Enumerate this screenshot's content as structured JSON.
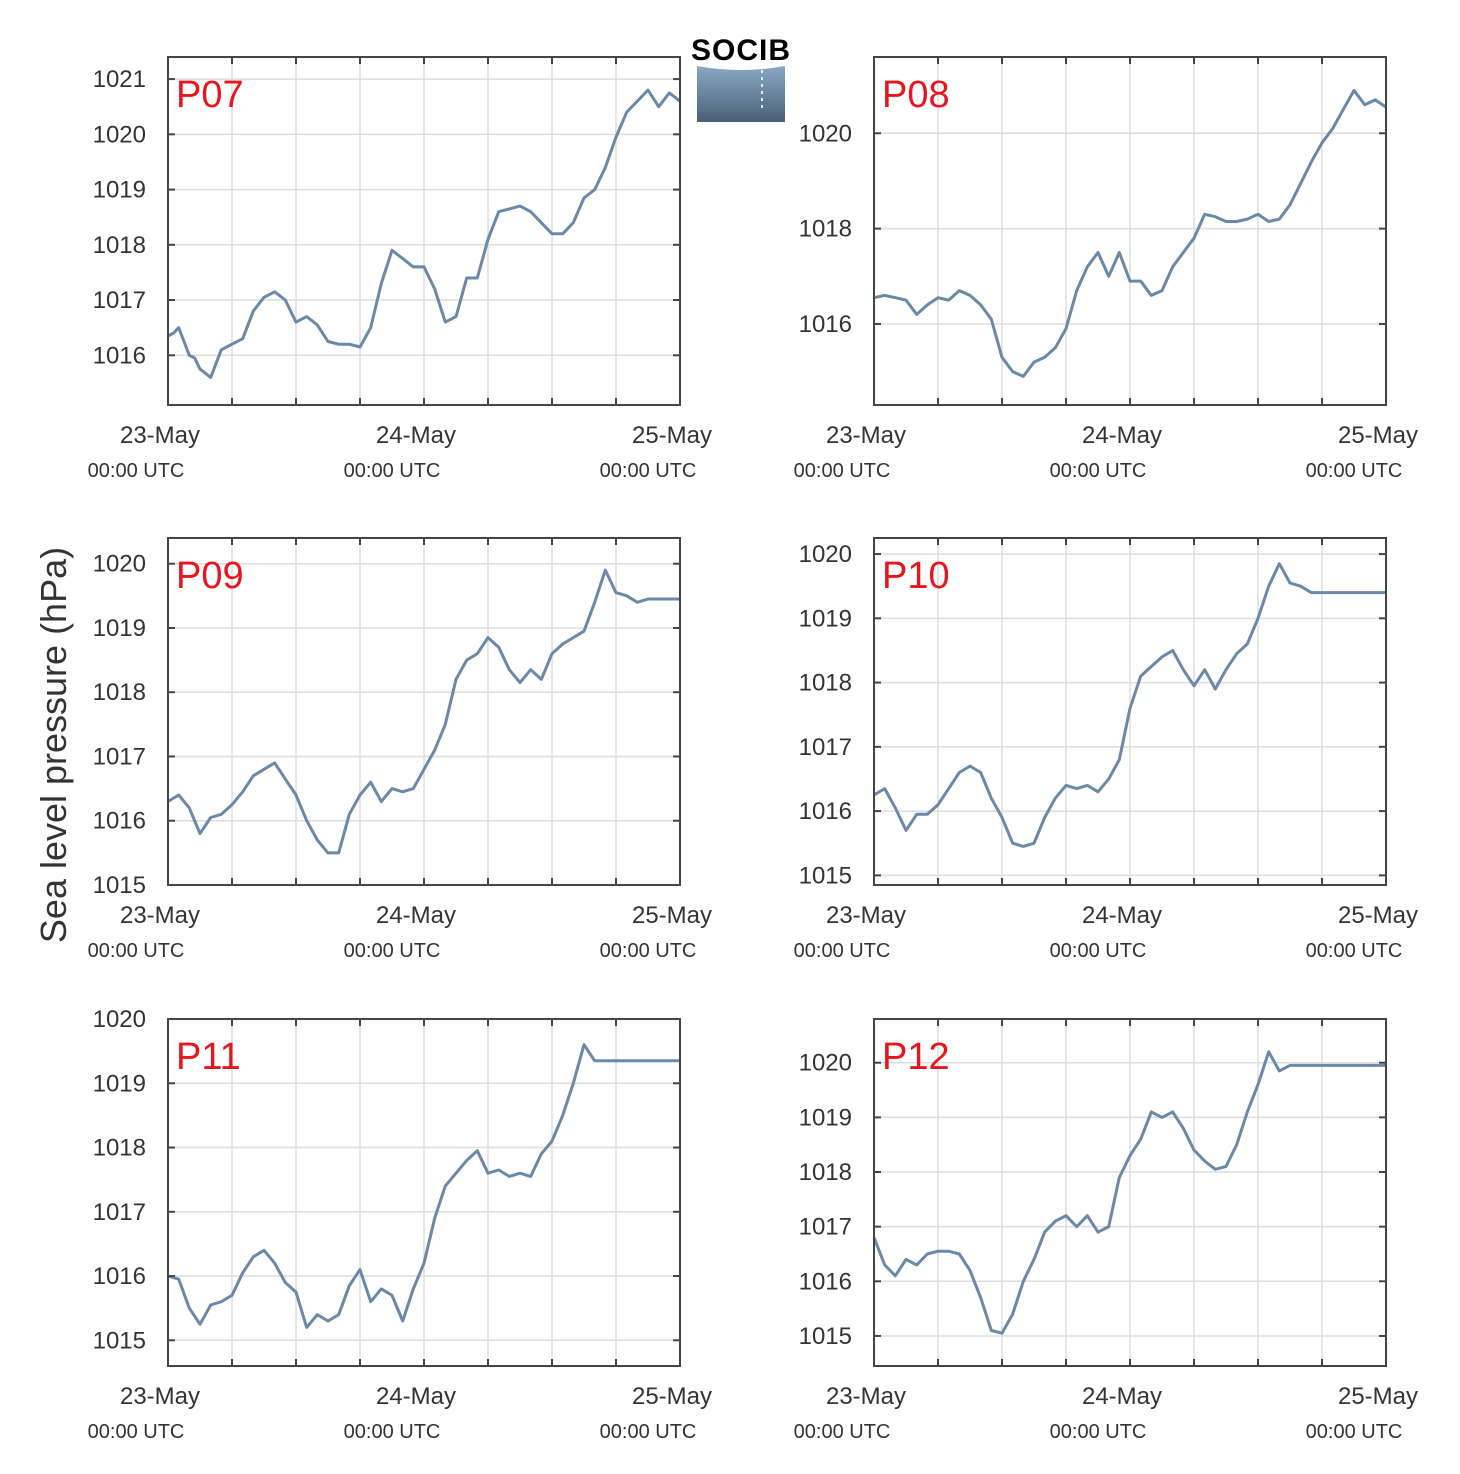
{
  "colors": {
    "line": "#6a88a8",
    "grid": "#dddddd",
    "axis": "#444444",
    "panel_label": "#e8141e",
    "logo_text": "#5aa5cf"
  },
  "logo": {
    "text": "SOCIB"
  },
  "y_axis_label": "Sea level pressure (hPa)",
  "x_axis": {
    "range": [
      "2024-05-23T00:00Z",
      "2024-05-25T00:00Z"
    ],
    "ticks": [
      {
        "date": "23-May",
        "time": "00:00 UTC"
      },
      {
        "date": "24-May",
        "time": "00:00 UTC"
      },
      {
        "date": "25-May",
        "time": "00:00 UTC"
      }
    ]
  },
  "chart_data": [
    {
      "type": "line",
      "label": "P07",
      "ylim": [
        1015.1,
        1021.4
      ],
      "yticks": [
        1016,
        1017,
        1018,
        1019,
        1020,
        1021
      ],
      "grid": true,
      "x_hours": [
        0,
        0.5,
        1,
        1.5,
        2,
        2.5,
        3,
        4,
        5,
        6,
        7,
        8,
        9,
        10,
        11,
        12,
        13,
        14,
        15,
        16,
        17,
        18,
        19,
        20,
        21,
        22,
        23,
        24,
        25,
        26,
        27,
        28,
        29,
        30,
        31,
        32,
        33,
        34,
        35,
        36,
        37,
        38,
        39,
        40,
        41,
        42,
        43,
        44,
        45,
        46,
        47,
        48
      ],
      "values": [
        1016.35,
        1016.4,
        1016.5,
        1016.25,
        1016.0,
        1015.95,
        1015.75,
        1015.6,
        1016.1,
        1016.2,
        1016.3,
        1016.8,
        1017.05,
        1017.15,
        1017.0,
        1016.6,
        1016.7,
        1016.55,
        1016.25,
        1016.2,
        1016.2,
        1016.15,
        1016.5,
        1017.3,
        1017.9,
        1017.75,
        1017.6,
        1017.6,
        1017.2,
        1016.6,
        1016.7,
        1017.4,
        1017.4,
        1018.1,
        1018.6,
        1018.65,
        1018.7,
        1018.6,
        1018.4,
        1018.2,
        1018.2,
        1018.4,
        1018.85,
        1019.0,
        1019.4,
        1019.95,
        1020.4,
        1020.6,
        1020.8,
        1020.5,
        1020.75,
        1020.6
      ]
    },
    {
      "type": "line",
      "label": "P08",
      "ylim": [
        1014.3,
        1021.6
      ],
      "yticks": [
        1016,
        1018,
        1020
      ],
      "grid": true,
      "x_hours": [
        0,
        1,
        2,
        3,
        4,
        5,
        6,
        7,
        8,
        9,
        10,
        11,
        12,
        13,
        14,
        15,
        16,
        17,
        18,
        19,
        20,
        21,
        22,
        23,
        24,
        25,
        26,
        27,
        28,
        29,
        30,
        31,
        32,
        33,
        34,
        35,
        36,
        37,
        38,
        39,
        40,
        41,
        42,
        43,
        44,
        45,
        46,
        47,
        48
      ],
      "values": [
        1016.55,
        1016.6,
        1016.55,
        1016.5,
        1016.2,
        1016.4,
        1016.55,
        1016.5,
        1016.7,
        1016.6,
        1016.4,
        1016.1,
        1015.3,
        1015.0,
        1014.9,
        1015.2,
        1015.3,
        1015.5,
        1015.9,
        1016.7,
        1017.2,
        1017.5,
        1017.0,
        1017.5,
        1016.9,
        1016.9,
        1016.6,
        1016.7,
        1017.2,
        1017.5,
        1017.8,
        1018.3,
        1018.25,
        1018.15,
        1018.15,
        1018.2,
        1018.3,
        1018.15,
        1018.2,
        1018.5,
        1018.95,
        1019.4,
        1019.8,
        1020.1,
        1020.5,
        1020.9,
        1020.6,
        1020.7,
        1020.55
      ]
    },
    {
      "type": "line",
      "label": "P09",
      "ylim": [
        1015.0,
        1020.4
      ],
      "yticks": [
        1015,
        1016,
        1017,
        1018,
        1019,
        1020
      ],
      "grid": true,
      "x_hours": [
        0,
        1,
        2,
        3,
        4,
        5,
        6,
        7,
        8,
        9,
        10,
        11,
        12,
        13,
        14,
        15,
        16,
        17,
        18,
        19,
        20,
        21,
        22,
        23,
        24,
        25,
        26,
        27,
        28,
        29,
        30,
        31,
        32,
        33,
        34,
        35,
        36,
        37,
        38,
        39,
        40,
        41,
        42,
        43,
        44,
        45,
        46,
        47,
        48
      ],
      "values": [
        1016.3,
        1016.4,
        1016.2,
        1015.8,
        1016.05,
        1016.1,
        1016.25,
        1016.45,
        1016.7,
        1016.8,
        1016.9,
        1016.65,
        1016.4,
        1016.0,
        1015.7,
        1015.5,
        1015.5,
        1016.1,
        1016.4,
        1016.6,
        1016.3,
        1016.5,
        1016.45,
        1016.5,
        1016.8,
        1017.1,
        1017.5,
        1018.2,
        1018.5,
        1018.6,
        1018.85,
        1018.7,
        1018.35,
        1018.15,
        1018.35,
        1018.2,
        1018.6,
        1018.75,
        1018.85,
        1018.95,
        1019.4,
        1019.9,
        1019.55,
        1019.5,
        1019.4,
        1019.45,
        1019.45,
        1019.45,
        1019.45
      ]
    },
    {
      "type": "line",
      "label": "P10",
      "ylim": [
        1014.85,
        1020.25
      ],
      "yticks": [
        1015,
        1016,
        1017,
        1018,
        1019,
        1020
      ],
      "grid": true,
      "x_hours": [
        0,
        1,
        2,
        3,
        4,
        5,
        6,
        7,
        8,
        9,
        10,
        11,
        12,
        13,
        14,
        15,
        16,
        17,
        18,
        19,
        20,
        21,
        22,
        23,
        24,
        25,
        26,
        27,
        28,
        29,
        30,
        31,
        32,
        33,
        34,
        35,
        36,
        37,
        38,
        39,
        40,
        41,
        42,
        43,
        44,
        45,
        46,
        47,
        48
      ],
      "values": [
        1016.25,
        1016.35,
        1016.05,
        1015.7,
        1015.95,
        1015.95,
        1016.1,
        1016.35,
        1016.6,
        1016.7,
        1016.6,
        1016.2,
        1015.9,
        1015.5,
        1015.45,
        1015.5,
        1015.9,
        1016.2,
        1016.4,
        1016.35,
        1016.4,
        1016.3,
        1016.5,
        1016.8,
        1017.6,
        1018.1,
        1018.25,
        1018.4,
        1018.5,
        1018.2,
        1017.95,
        1018.2,
        1017.9,
        1018.2,
        1018.45,
        1018.6,
        1019.0,
        1019.5,
        1019.85,
        1019.55,
        1019.5,
        1019.4,
        1019.4,
        1019.4,
        1019.4,
        1019.4,
        1019.4,
        1019.4,
        1019.4
      ]
    },
    {
      "type": "line",
      "label": "P11",
      "ylim": [
        1014.6,
        1020.0
      ],
      "yticks": [
        1015,
        1016,
        1017,
        1018,
        1019,
        1020
      ],
      "grid": true,
      "x_hours": [
        0,
        1,
        2,
        3,
        4,
        5,
        6,
        7,
        8,
        9,
        10,
        11,
        12,
        13,
        14,
        15,
        16,
        17,
        18,
        19,
        20,
        21,
        22,
        23,
        24,
        25,
        26,
        27,
        28,
        29,
        30,
        31,
        32,
        33,
        34,
        35,
        36,
        37,
        38,
        39,
        40,
        41,
        42,
        43,
        44,
        45,
        46,
        47,
        48
      ],
      "values": [
        1016.0,
        1015.95,
        1015.5,
        1015.25,
        1015.55,
        1015.6,
        1015.7,
        1016.05,
        1016.3,
        1016.4,
        1016.2,
        1015.9,
        1015.75,
        1015.2,
        1015.4,
        1015.3,
        1015.4,
        1015.85,
        1016.1,
        1015.6,
        1015.8,
        1015.7,
        1015.3,
        1015.8,
        1016.2,
        1016.9,
        1017.4,
        1017.6,
        1017.8,
        1017.95,
        1017.6,
        1017.65,
        1017.55,
        1017.6,
        1017.55,
        1017.9,
        1018.1,
        1018.5,
        1019.0,
        1019.6,
        1019.35,
        1019.35,
        1019.35,
        1019.35,
        1019.35,
        1019.35,
        1019.35,
        1019.35,
        1019.35
      ]
    },
    {
      "type": "line",
      "label": "P12",
      "ylim": [
        1014.45,
        1020.8
      ],
      "yticks": [
        1015,
        1016,
        1017,
        1018,
        1019,
        1020
      ],
      "grid": true,
      "x_hours": [
        0,
        1,
        2,
        3,
        4,
        5,
        6,
        7,
        8,
        9,
        10,
        11,
        12,
        13,
        14,
        15,
        16,
        17,
        18,
        19,
        20,
        21,
        22,
        23,
        24,
        25,
        26,
        27,
        28,
        29,
        30,
        31,
        32,
        33,
        34,
        35,
        36,
        37,
        38,
        39,
        40,
        41,
        42,
        43,
        44,
        45,
        46,
        47,
        48
      ],
      "values": [
        1016.8,
        1016.3,
        1016.1,
        1016.4,
        1016.3,
        1016.5,
        1016.55,
        1016.55,
        1016.5,
        1016.2,
        1015.7,
        1015.1,
        1015.05,
        1015.4,
        1016.0,
        1016.4,
        1016.9,
        1017.1,
        1017.2,
        1017.0,
        1017.2,
        1016.9,
        1017.0,
        1017.9,
        1018.3,
        1018.6,
        1019.1,
        1019.0,
        1019.1,
        1018.8,
        1018.4,
        1018.2,
        1018.05,
        1018.1,
        1018.5,
        1019.1,
        1019.6,
        1020.2,
        1019.85,
        1019.95,
        1019.95,
        1019.95,
        1019.95,
        1019.95,
        1019.95,
        1019.95,
        1019.95,
        1019.95,
        1019.95
      ]
    }
  ]
}
